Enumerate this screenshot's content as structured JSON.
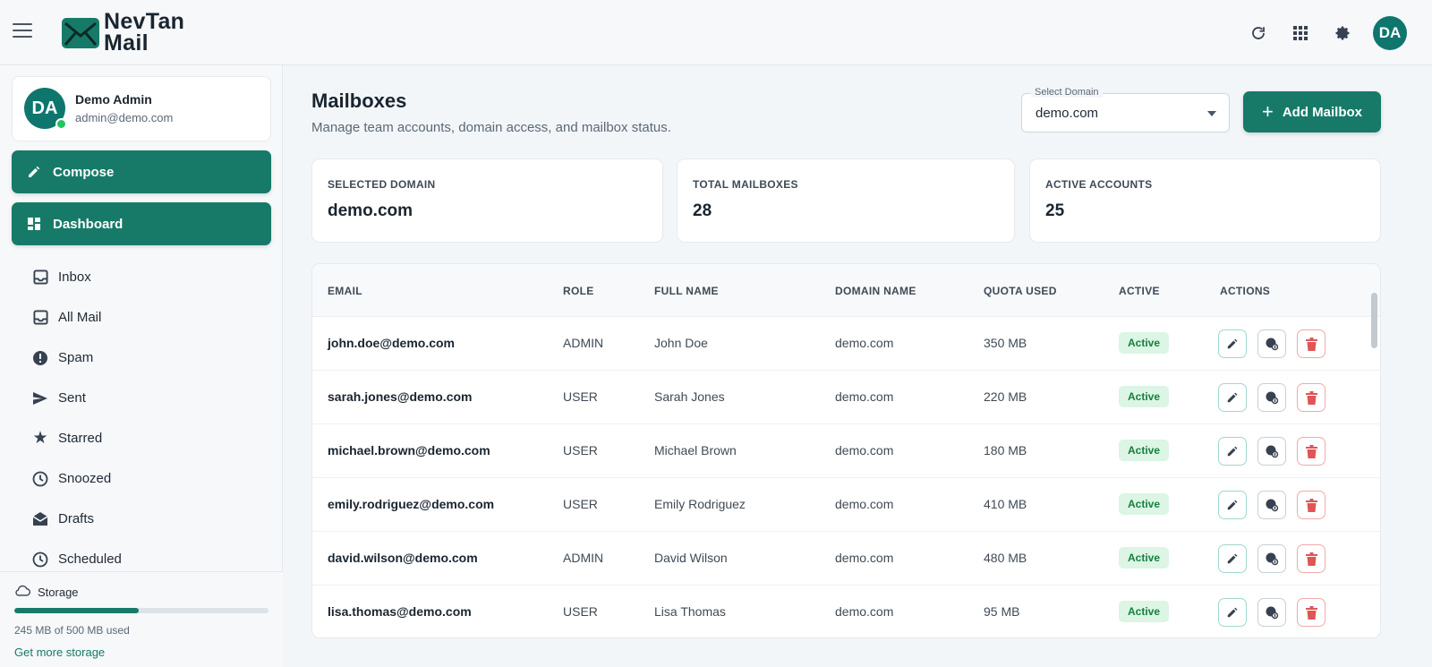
{
  "app": {
    "name_line1": "NevTan",
    "name_line2": "Mail",
    "user_initials": "DA"
  },
  "user": {
    "initials": "DA",
    "name": "Demo Admin",
    "email": "admin@demo.com"
  },
  "sidebar": {
    "compose_label": "Compose",
    "dashboard_label": "Dashboard",
    "items": [
      {
        "label": "Inbox",
        "icon": "inbox-icon"
      },
      {
        "label": "All Mail",
        "icon": "all-mail-icon"
      },
      {
        "label": "Spam",
        "icon": "spam-icon"
      },
      {
        "label": "Sent",
        "icon": "send-icon"
      },
      {
        "label": "Starred",
        "icon": "star-icon"
      },
      {
        "label": "Snoozed",
        "icon": "clock-icon"
      },
      {
        "label": "Drafts",
        "icon": "drafts-icon"
      },
      {
        "label": "Scheduled",
        "icon": "schedule-icon"
      }
    ]
  },
  "storage": {
    "label": "Storage",
    "used_text": "245 MB of 500 MB used",
    "used_fraction": 0.49,
    "link": "Get more storage"
  },
  "main": {
    "title": "Mailboxes",
    "subtitle": "Manage team accounts, domain access, and mailbox status.",
    "domain_select": {
      "label": "Select Domain",
      "value": "demo.com"
    },
    "add_button": "Add Mailbox"
  },
  "stats": [
    {
      "label": "SELECTED DOMAIN",
      "value": "demo.com"
    },
    {
      "label": "TOTAL MAILBOXES",
      "value": "28"
    },
    {
      "label": "ACTIVE ACCOUNTS",
      "value": "25"
    }
  ],
  "table": {
    "columns": [
      "EMAIL",
      "ROLE",
      "FULL NAME",
      "DOMAIN NAME",
      "QUOTA USED",
      "ACTIVE",
      "ACTIONS"
    ],
    "rows": [
      {
        "email": "john.doe@demo.com",
        "role": "ADMIN",
        "name": "John Doe",
        "domain": "demo.com",
        "quota": "350 MB",
        "status": "Active"
      },
      {
        "email": "sarah.jones@demo.com",
        "role": "USER",
        "name": "Sarah Jones",
        "domain": "demo.com",
        "quota": "220 MB",
        "status": "Active"
      },
      {
        "email": "michael.brown@demo.com",
        "role": "USER",
        "name": "Michael Brown",
        "domain": "demo.com",
        "quota": "180 MB",
        "status": "Active"
      },
      {
        "email": "emily.rodriguez@demo.com",
        "role": "USER",
        "name": "Emily Rodriguez",
        "domain": "demo.com",
        "quota": "410 MB",
        "status": "Active"
      },
      {
        "email": "david.wilson@demo.com",
        "role": "ADMIN",
        "name": "David Wilson",
        "domain": "demo.com",
        "quota": "480 MB",
        "status": "Active"
      },
      {
        "email": "lisa.thomas@demo.com",
        "role": "USER",
        "name": "Lisa Thomas",
        "domain": "demo.com",
        "quota": "95 MB",
        "status": "Active"
      }
    ]
  },
  "colors": {
    "brand": "#177a69",
    "active_badge_bg": "#dcf5e5",
    "active_badge_text": "#15803d",
    "delete": "#e05555"
  }
}
